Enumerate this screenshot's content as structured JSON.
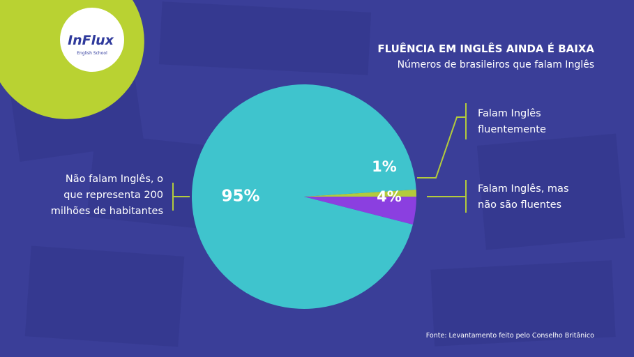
{
  "logo": {
    "name": "InFlux",
    "tagline": "English School"
  },
  "chart_data": {
    "type": "pie",
    "title": "FLUÊNCIA EM INGLÊS AINDA É BAIXA",
    "subtitle": "Números de brasileiros que falam Inglês",
    "categories": [
      "Não falam Inglês, o que representa 200 milhões de habitantes",
      "Falam Inglês fluentemente",
      "Falam Inglês, mas não são fluentes"
    ],
    "values": [
      95,
      1,
      4
    ],
    "value_labels": [
      "95%",
      "1%",
      "4%"
    ],
    "colors": [
      "#3fc4cd",
      "#b3cb3c",
      "#8b3fe0"
    ],
    "source": "Fonte: Levantamento feito pelo Conselho Britânico"
  }
}
